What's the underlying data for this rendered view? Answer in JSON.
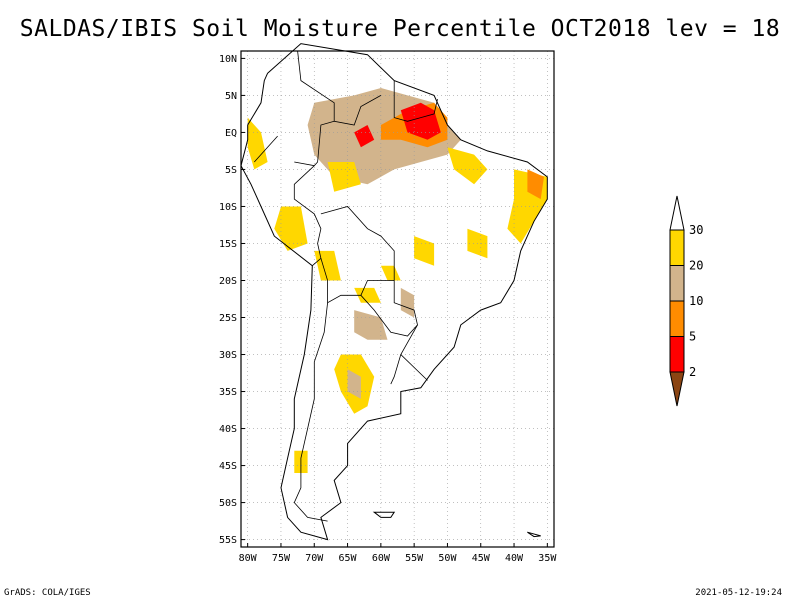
{
  "title": "SALDAS/IBIS Soil Moisture Percentile OCT2018 lev = 18",
  "footer": {
    "left": "GrADS: COLA/IGES",
    "right": "2021-05-12-19:24"
  },
  "map": {
    "lon_range": [
      -81,
      -34
    ],
    "lat_range": [
      -56,
      11
    ],
    "lat_ticks": [
      {
        "value": 10,
        "label": "10N"
      },
      {
        "value": 5,
        "label": "5N"
      },
      {
        "value": 0,
        "label": "EQ"
      },
      {
        "value": -5,
        "label": "5S"
      },
      {
        "value": -10,
        "label": "10S"
      },
      {
        "value": -15,
        "label": "15S"
      },
      {
        "value": -20,
        "label": "20S"
      },
      {
        "value": -25,
        "label": "25S"
      },
      {
        "value": -30,
        "label": "30S"
      },
      {
        "value": -35,
        "label": "35S"
      },
      {
        "value": -40,
        "label": "40S"
      },
      {
        "value": -45,
        "label": "45S"
      },
      {
        "value": -50,
        "label": "50S"
      },
      {
        "value": -55,
        "label": "55S"
      }
    ],
    "lon_ticks": [
      {
        "value": -80,
        "label": "80W"
      },
      {
        "value": -75,
        "label": "75W"
      },
      {
        "value": -70,
        "label": "70W"
      },
      {
        "value": -65,
        "label": "65W"
      },
      {
        "value": -60,
        "label": "60W"
      },
      {
        "value": -55,
        "label": "55W"
      },
      {
        "value": -50,
        "label": "50W"
      },
      {
        "value": -45,
        "label": "45W"
      },
      {
        "value": -40,
        "label": "40W"
      },
      {
        "value": -35,
        "label": "35W"
      }
    ],
    "gridlines": true,
    "coastline": [
      [
        -77,
        8
      ],
      [
        -72,
        12
      ],
      [
        -62,
        10.5
      ],
      [
        -58,
        7
      ],
      [
        -52,
        5
      ],
      [
        -50,
        1
      ],
      [
        -48,
        -1
      ],
      [
        -44,
        -2.5
      ],
      [
        -38,
        -4
      ],
      [
        -35,
        -6
      ],
      [
        -35,
        -9
      ],
      [
        -37,
        -12
      ],
      [
        -39,
        -16
      ],
      [
        -40,
        -20
      ],
      [
        -42,
        -23
      ],
      [
        -45,
        -24
      ],
      [
        -48,
        -26
      ],
      [
        -49,
        -29
      ],
      [
        -52,
        -32
      ],
      [
        -54,
        -34.5
      ],
      [
        -57,
        -35
      ],
      [
        -57,
        -38
      ],
      [
        -62,
        -39
      ],
      [
        -65,
        -42
      ],
      [
        -65,
        -45
      ],
      [
        -67,
        -47
      ],
      [
        -66,
        -50
      ],
      [
        -69,
        -52
      ],
      [
        -68,
        -55
      ],
      [
        -72,
        -54
      ],
      [
        -74,
        -52
      ],
      [
        -75,
        -48
      ],
      [
        -74,
        -44
      ],
      [
        -73,
        -40
      ],
      [
        -73,
        -36
      ],
      [
        -71.5,
        -30
      ],
      [
        -70.5,
        -24
      ],
      [
        -70.3,
        -18
      ],
      [
        -76,
        -14
      ],
      [
        -78,
        -10
      ],
      [
        -79.5,
        -7
      ],
      [
        -81,
        -4.5
      ],
      [
        -80,
        -1
      ],
      [
        -80,
        1
      ],
      [
        -78,
        4
      ],
      [
        -77.5,
        7
      ],
      [
        -77,
        8
      ]
    ],
    "islands": [
      [
        [
          -61,
          -51.3
        ],
        [
          -58,
          -51.3
        ],
        [
          -58.5,
          -52
        ],
        [
          -60,
          -52
        ],
        [
          -61,
          -51.3
        ]
      ],
      [
        [
          -38,
          -54
        ],
        [
          -36,
          -54.5
        ],
        [
          -37,
          -54.6
        ],
        [
          -38,
          -54
        ]
      ]
    ],
    "borders": [
      [
        [
          -67,
          1.5
        ],
        [
          -69,
          1
        ],
        [
          -69.5,
          -4
        ],
        [
          -70,
          -4.5
        ],
        [
          -73,
          -4
        ]
      ],
      [
        [
          -58,
          7
        ],
        [
          -58,
          2
        ],
        [
          -56,
          1.5
        ],
        [
          -54,
          2
        ],
        [
          -52,
          2.5
        ],
        [
          -51.5,
          4.5
        ]
      ],
      [
        [
          -60,
          5
        ],
        [
          -63,
          3.5
        ],
        [
          -64,
          1
        ],
        [
          -67,
          1.5
        ],
        [
          -67,
          4
        ],
        [
          -72,
          7
        ],
        [
          -72.5,
          11
        ]
      ],
      [
        [
          -75.5,
          -0.5
        ],
        [
          -79,
          -4
        ]
      ],
      [
        [
          -70,
          -4.5
        ],
        [
          -73,
          -7
        ],
        [
          -73,
          -9
        ],
        [
          -70,
          -11
        ],
        [
          -69,
          -13
        ],
        [
          -69.5,
          -15
        ],
        [
          -69,
          -17
        ],
        [
          -70.3,
          -18
        ]
      ],
      [
        [
          -69,
          -11
        ],
        [
          -65,
          -10
        ],
        [
          -62,
          -13
        ],
        [
          -60,
          -14
        ],
        [
          -58,
          -16
        ],
        [
          -58,
          -20
        ]
      ],
      [
        [
          -69,
          -17
        ],
        [
          -68,
          -20
        ],
        [
          -68,
          -23
        ],
        [
          -66,
          -22
        ],
        [
          -63,
          -22
        ],
        [
          -62,
          -20
        ],
        [
          -58,
          -20
        ]
      ],
      [
        [
          -58,
          -20
        ],
        [
          -58,
          -23
        ],
        [
          -55,
          -24
        ],
        [
          -54.5,
          -26
        ],
        [
          -56,
          -27.5
        ],
        [
          -58.5,
          -27
        ],
        [
          -61,
          -24
        ],
        [
          -63,
          -22
        ]
      ],
      [
        [
          -68,
          -23
        ],
        [
          -68.5,
          -27
        ],
        [
          -70,
          -31
        ],
        [
          -70,
          -36
        ],
        [
          -71,
          -40
        ],
        [
          -72,
          -44
        ],
        [
          -72,
          -48
        ],
        [
          -73,
          -50
        ],
        [
          -71,
          -52
        ],
        [
          -68,
          -52.5
        ]
      ],
      [
        [
          -54.5,
          -26
        ],
        [
          -57,
          -30
        ],
        [
          -53,
          -33.5
        ]
      ],
      [
        [
          -57,
          -30
        ],
        [
          -58,
          -33
        ],
        [
          -58.5,
          -34
        ]
      ]
    ],
    "shading": [
      {
        "cat": "20-30",
        "poly": [
          [
            -80,
            2
          ],
          [
            -78,
            0
          ],
          [
            -77,
            -4
          ],
          [
            -79,
            -5
          ],
          [
            -80,
            -2
          ]
        ]
      },
      {
        "cat": "10-20",
        "poly": [
          [
            -70,
            4
          ],
          [
            -64,
            5
          ],
          [
            -60,
            6
          ],
          [
            -56,
            5
          ],
          [
            -52,
            4
          ],
          [
            -50,
            1
          ],
          [
            -48,
            -1
          ],
          [
            -50,
            -3
          ],
          [
            -54,
            -4
          ],
          [
            -58,
            -5
          ],
          [
            -62,
            -7
          ],
          [
            -67,
            -6
          ],
          [
            -70,
            -3
          ],
          [
            -71,
            1
          ]
        ]
      },
      {
        "cat": "5-10",
        "poly": [
          [
            -60,
            1
          ],
          [
            -56,
            3
          ],
          [
            -52,
            4
          ],
          [
            -50,
            2
          ],
          [
            -50,
            -1
          ],
          [
            -53,
            -2
          ],
          [
            -57,
            -1
          ],
          [
            -60,
            -1
          ]
        ]
      },
      {
        "cat": "2-5",
        "poly": [
          [
            -57,
            3
          ],
          [
            -54,
            4
          ],
          [
            -52,
            3
          ],
          [
            -51,
            0
          ],
          [
            -53,
            -1
          ],
          [
            -56,
            0
          ]
        ]
      },
      {
        "cat": "2-5",
        "poly": [
          [
            -64,
            0
          ],
          [
            -62,
            1
          ],
          [
            -61,
            -1
          ],
          [
            -63,
            -2
          ]
        ]
      },
      {
        "cat": "20-30",
        "poly": [
          [
            -66,
            -30
          ],
          [
            -63,
            -30
          ],
          [
            -61,
            -33
          ],
          [
            -62,
            -37
          ],
          [
            -64,
            -38
          ],
          [
            -66,
            -35
          ],
          [
            -67,
            -32
          ]
        ]
      },
      {
        "cat": "10-20",
        "poly": [
          [
            -65,
            -32
          ],
          [
            -63,
            -33
          ],
          [
            -63,
            -36
          ],
          [
            -65,
            -35
          ]
        ]
      },
      {
        "cat": "10-20",
        "poly": [
          [
            -64,
            -24
          ],
          [
            -60,
            -25
          ],
          [
            -59,
            -28
          ],
          [
            -62,
            -28
          ],
          [
            -64,
            -27
          ]
        ]
      },
      {
        "cat": "10-20",
        "poly": [
          [
            -57,
            -21
          ],
          [
            -55,
            -22
          ],
          [
            -55,
            -25
          ],
          [
            -57,
            -24
          ]
        ]
      },
      {
        "cat": "20-30",
        "poly": [
          [
            -64,
            -21
          ],
          [
            -61,
            -21
          ],
          [
            -60,
            -23
          ],
          [
            -63,
            -23
          ]
        ]
      },
      {
        "cat": "20-30",
        "poly": [
          [
            -40,
            -5
          ],
          [
            -35,
            -6
          ],
          [
            -35,
            -9
          ],
          [
            -37,
            -12
          ],
          [
            -39,
            -15
          ],
          [
            -41,
            -13
          ],
          [
            -40,
            -9
          ]
        ]
      },
      {
        "cat": "5-10",
        "poly": [
          [
            -38,
            -5
          ],
          [
            -35.5,
            -6
          ],
          [
            -36,
            -9
          ],
          [
            -38,
            -8
          ]
        ]
      },
      {
        "cat": "20-30",
        "poly": [
          [
            -50,
            -2
          ],
          [
            -46,
            -3
          ],
          [
            -44,
            -5
          ],
          [
            -46,
            -7
          ],
          [
            -49,
            -5
          ]
        ]
      },
      {
        "cat": "20-30",
        "poly": [
          [
            -75,
            -10
          ],
          [
            -72,
            -10
          ],
          [
            -71,
            -15
          ],
          [
            -74,
            -16
          ],
          [
            -76,
            -13
          ]
        ]
      },
      {
        "cat": "20-30",
        "poly": [
          [
            -70,
            -16
          ],
          [
            -67,
            -16
          ],
          [
            -66,
            -20
          ],
          [
            -69,
            -20
          ]
        ]
      },
      {
        "cat": "20-30",
        "poly": [
          [
            -47,
            -13
          ],
          [
            -44,
            -14
          ],
          [
            -44,
            -17
          ],
          [
            -47,
            -16
          ]
        ]
      },
      {
        "cat": "20-30",
        "poly": [
          [
            -55,
            -14
          ],
          [
            -52,
            -15
          ],
          [
            -52,
            -18
          ],
          [
            -55,
            -17
          ]
        ]
      },
      {
        "cat": "20-30",
        "poly": [
          [
            -73,
            -43
          ],
          [
            -71,
            -43
          ],
          [
            -71,
            -46
          ],
          [
            -73,
            -46
          ]
        ]
      },
      {
        "cat": "20-30",
        "poly": [
          [
            -60,
            -18
          ],
          [
            -58,
            -18
          ],
          [
            -57,
            -20
          ],
          [
            -59,
            -20
          ]
        ]
      },
      {
        "cat": "20-30",
        "poly": [
          [
            -68,
            -4
          ],
          [
            -64,
            -4
          ],
          [
            -63,
            -7
          ],
          [
            -67,
            -8
          ]
        ]
      }
    ]
  },
  "colorbar": {
    "bins": [
      {
        "cat": "0-2",
        "color": "#8b4513"
      },
      {
        "cat": "2-5",
        "color": "#ff0000"
      },
      {
        "cat": "5-10",
        "color": "#ff8c00"
      },
      {
        "cat": "10-20",
        "color": "#d2b48c"
      },
      {
        "cat": "20-30",
        "color": "#ffd700"
      },
      {
        "cat": ">30",
        "color": "#ffffff"
      }
    ],
    "labels": [
      "2",
      "5",
      "10",
      "20",
      "30"
    ]
  }
}
